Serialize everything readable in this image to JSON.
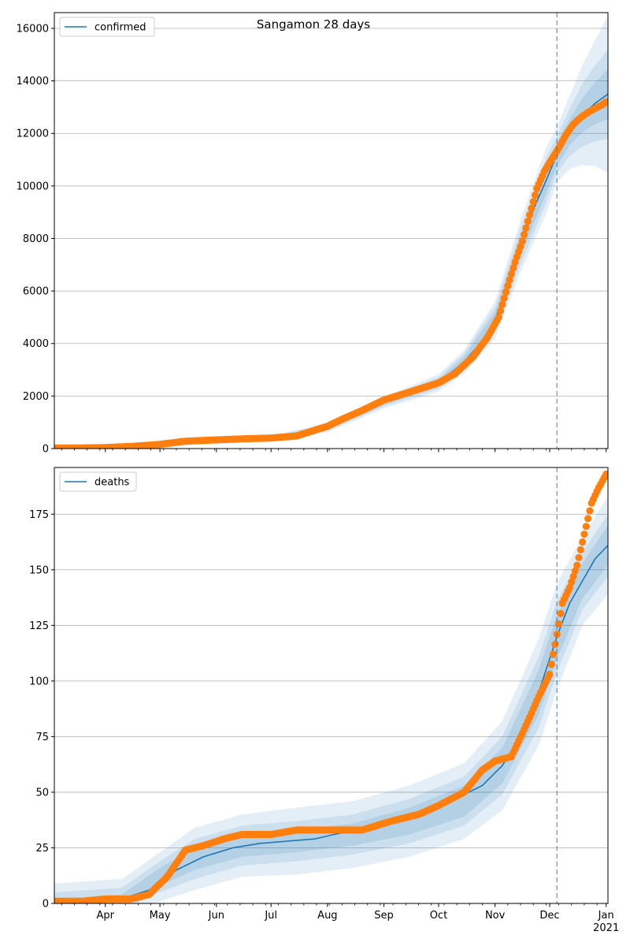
{
  "figure": {
    "title": "Sangamon 28 days"
  },
  "colors": {
    "model": "#1f77b4",
    "observed": "#ff7f0e",
    "band": "#1f77b4",
    "grid": "#b0b0b0",
    "cutoff": "#1f77b4"
  },
  "chart_data": [
    {
      "type": "line",
      "panel": "confirmed",
      "legend": [
        "confirmed"
      ],
      "legend_position": "top-left",
      "grid": "y",
      "x_range": [
        "2020-03-04",
        "2021-01-02"
      ],
      "ylim": [
        0,
        16600
      ],
      "yticks": [
        0,
        2000,
        4000,
        6000,
        8000,
        10000,
        12000,
        14000,
        16000
      ],
      "cutoff_date": "2020-12-05",
      "model": {
        "x": [
          "2020-03-04",
          "2020-03-20",
          "2020-04-10",
          "2020-05-01",
          "2020-05-20",
          "2020-06-10",
          "2020-07-01",
          "2020-07-15",
          "2020-08-01",
          "2020-08-15",
          "2020-09-01",
          "2020-09-15",
          "2020-10-01",
          "2020-10-15",
          "2020-10-25",
          "2020-11-01",
          "2020-11-08",
          "2020-11-15",
          "2020-11-22",
          "2020-11-29",
          "2020-12-05",
          "2020-12-12",
          "2020-12-19",
          "2020-12-26",
          "2021-01-02"
        ],
        "y": [
          0,
          0,
          20,
          120,
          270,
          330,
          400,
          480,
          800,
          1350,
          1750,
          2050,
          2500,
          3300,
          4100,
          4900,
          6200,
          7700,
          9100,
          10200,
          11200,
          12050,
          12700,
          13150,
          13500
        ]
      },
      "bands": {
        "x": [
          "2020-07-01",
          "2020-08-01",
          "2020-09-01",
          "2020-10-01",
          "2020-10-15",
          "2020-11-01",
          "2020-11-15",
          "2020-11-29",
          "2020-12-05",
          "2020-12-12",
          "2020-12-19",
          "2020-12-26",
          "2021-01-02"
        ],
        "median": [
          400,
          800,
          1750,
          2500,
          3300,
          4900,
          7700,
          10200,
          11200,
          12050,
          12700,
          13150,
          13500
        ],
        "inner_halfwidth": [
          30,
          60,
          80,
          120,
          200,
          300,
          400,
          500,
          450,
          500,
          650,
          800,
          950
        ],
        "mid_halfwidth": [
          60,
          120,
          150,
          220,
          330,
          500,
          700,
          850,
          700,
          900,
          1200,
          1450,
          1700
        ],
        "outer_halfwidth": [
          90,
          180,
          220,
          330,
          450,
          700,
          1000,
          1250,
          1050,
          1400,
          1900,
          2400,
          3000
        ]
      },
      "observed": {
        "x": [
          "2020-03-04",
          "2020-03-20",
          "2020-04-01",
          "2020-04-15",
          "2020-05-01",
          "2020-05-15",
          "2020-06-01",
          "2020-06-15",
          "2020-07-01",
          "2020-07-15",
          "2020-08-01",
          "2020-08-10",
          "2020-08-20",
          "2020-09-01",
          "2020-09-15",
          "2020-10-01",
          "2020-10-10",
          "2020-10-20",
          "2020-10-28",
          "2020-11-03",
          "2020-11-08",
          "2020-11-12",
          "2020-11-16",
          "2020-11-20",
          "2020-11-24",
          "2020-11-28",
          "2020-12-02",
          "2020-12-06",
          "2020-12-10",
          "2020-12-14",
          "2020-12-18",
          "2020-12-22",
          "2020-12-26",
          "2020-12-30",
          "2021-01-01"
        ],
        "y": [
          20,
          25,
          40,
          80,
          160,
          280,
          330,
          370,
          400,
          480,
          850,
          1150,
          1450,
          1850,
          2150,
          2500,
          2850,
          3500,
          4250,
          5000,
          6200,
          7100,
          7900,
          8900,
          9900,
          10550,
          11000,
          11450,
          11950,
          12350,
          12600,
          12800,
          12950,
          13100,
          13200
        ]
      }
    },
    {
      "type": "line",
      "panel": "deaths",
      "legend": [
        "deaths"
      ],
      "legend_position": "top-left",
      "grid": "y",
      "x_range": [
        "2020-03-04",
        "2021-01-02"
      ],
      "ylim": [
        0,
        196
      ],
      "yticks": [
        0,
        25,
        50,
        75,
        100,
        125,
        150,
        175
      ],
      "xtick_labels": [
        "Apr",
        "May",
        "Jun",
        "Jul",
        "Aug",
        "Sep",
        "Oct",
        "Nov",
        "Dec",
        "Jan\n2021"
      ],
      "cutoff_date": "2020-12-05",
      "model": {
        "x": [
          "2020-03-04",
          "2020-03-25",
          "2020-04-10",
          "2020-04-25",
          "2020-05-10",
          "2020-05-25",
          "2020-06-10",
          "2020-06-25",
          "2020-07-10",
          "2020-07-25",
          "2020-08-10",
          "2020-08-25",
          "2020-09-10",
          "2020-09-25",
          "2020-10-10",
          "2020-10-25",
          "2020-11-05",
          "2020-11-15",
          "2020-11-25",
          "2020-12-05",
          "2020-12-12",
          "2020-12-19",
          "2020-12-26",
          "2021-01-02"
        ],
        "y": [
          0,
          1,
          2,
          6,
          15,
          21,
          25,
          27,
          28,
          29,
          32,
          35,
          38,
          42,
          47,
          53,
          62,
          75,
          95,
          120,
          135,
          145,
          155,
          161
        ]
      },
      "bands": {
        "x": [
          "2020-03-04",
          "2020-04-10",
          "2020-05-01",
          "2020-05-20",
          "2020-06-15",
          "2020-07-15",
          "2020-08-15",
          "2020-09-15",
          "2020-10-15",
          "2020-11-05",
          "2020-11-25",
          "2020-12-05",
          "2020-12-19",
          "2021-01-02"
        ],
        "median": [
          0,
          2,
          12,
          20,
          26,
          28,
          31,
          37,
          46,
          62,
          95,
          120,
          145,
          161
        ],
        "inner_halfwidth": [
          2,
          2,
          4,
          5,
          5,
          5,
          5,
          6,
          7,
          8,
          10,
          10,
          8,
          9
        ],
        "mid_halfwidth": [
          5,
          5,
          7,
          9,
          9,
          9,
          9,
          10,
          11,
          13,
          16,
          16,
          13,
          14
        ],
        "outer_halfwidth": [
          9,
          9,
          11,
          14,
          14,
          15,
          15,
          16,
          17,
          20,
          24,
          24,
          20,
          22
        ]
      },
      "observed": {
        "x": [
          "2020-03-04",
          "2020-03-20",
          "2020-04-01",
          "2020-04-15",
          "2020-04-25",
          "2020-05-05",
          "2020-05-15",
          "2020-05-25",
          "2020-06-05",
          "2020-06-15",
          "2020-07-01",
          "2020-07-15",
          "2020-08-01",
          "2020-08-20",
          "2020-09-05",
          "2020-09-20",
          "2020-10-01",
          "2020-10-15",
          "2020-10-25",
          "2020-11-01",
          "2020-11-10",
          "2020-11-18",
          "2020-11-25",
          "2020-12-01",
          "2020-12-05",
          "2020-12-08",
          "2020-12-12",
          "2020-12-16",
          "2020-12-20",
          "2020-12-24",
          "2020-12-28",
          "2021-01-01"
        ],
        "y": [
          1,
          1,
          2,
          2,
          4,
          12,
          24,
          26,
          29,
          31,
          31,
          33,
          33,
          33,
          37,
          40,
          44,
          50,
          60,
          64,
          66,
          80,
          93,
          103,
          121,
          135,
          142,
          152,
          166,
          180,
          187,
          193
        ]
      }
    }
  ]
}
